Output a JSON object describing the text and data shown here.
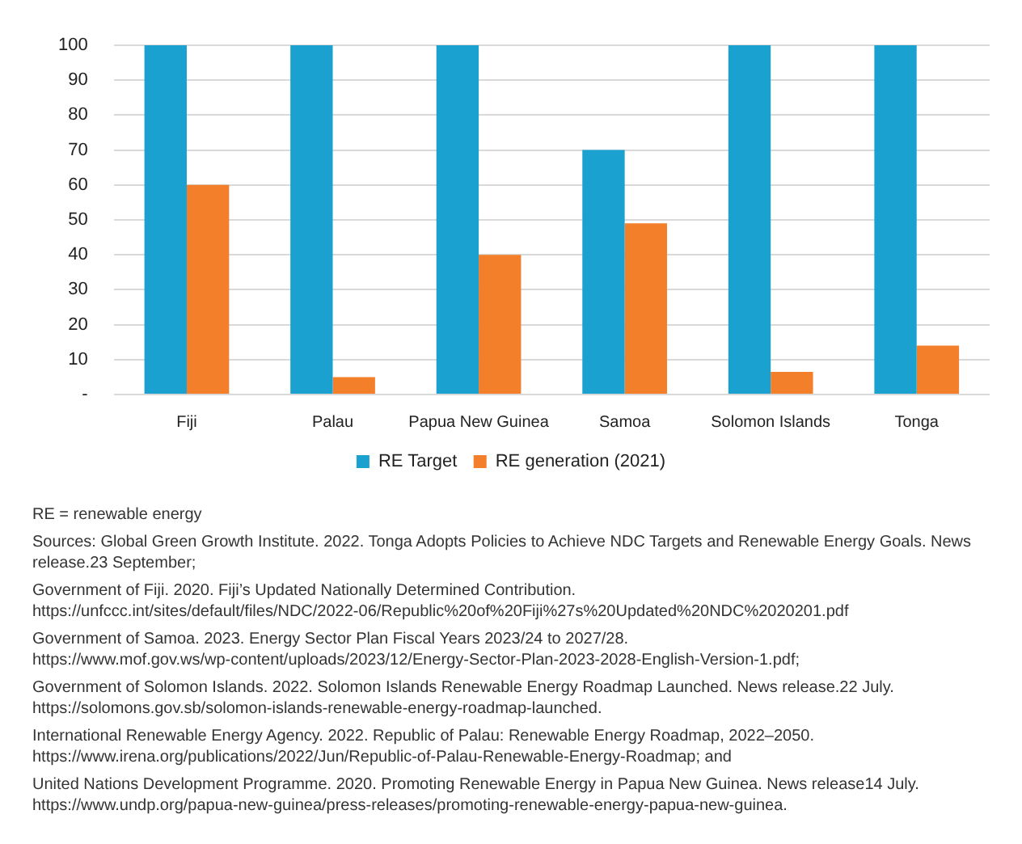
{
  "chart_data": {
    "type": "bar",
    "categories": [
      "Fiji",
      "Palau",
      "Papua New Guinea",
      "Samoa",
      "Solomon Islands",
      "Tonga"
    ],
    "series": [
      {
        "name": "RE Target",
        "color": "#1ba1cf",
        "values": [
          100,
          100,
          100,
          70,
          100,
          100
        ]
      },
      {
        "name": "RE generation (2021)",
        "color": "#f47f2a",
        "values": [
          60,
          5,
          40,
          49,
          6.5,
          14
        ]
      }
    ],
    "ylim": [
      0,
      100
    ],
    "yticks": [
      {
        "value": 0,
        "label": "-"
      },
      10,
      20,
      30,
      40,
      50,
      60,
      70,
      80,
      90,
      100
    ],
    "grid": "y",
    "legend": "bottom",
    "annotations": [
      "RE = renewable energy",
      "Sources: Global Green Growth Institute. 2022. Tonga Adopts Policies to Achieve NDC Targets and Renewable Energy Goals. News release.23 September;",
      "Government of Fiji. 2020. Fiji’s Updated Nationally Determined Contribution.\nhttps://unfccc.int/sites/default/files/NDC/2022-06/Republic%20of%20Fiji%27s%20Updated%20NDC%2020201.pdf",
      "Government of Samoa. 2023. Energy Sector Plan Fiscal Years 2023/24 to 2027/28.\nhttps://www.mof.gov.ws/wp-content/uploads/2023/12/Energy-Sector-Plan-2023-2028-English-Version-1.pdf;",
      "Government of Solomon Islands. 2022. Solomon Islands Renewable Energy Roadmap Launched. News release.22 July.\nhttps://solomons.gov.sb/solomon-islands-renewable-energy-roadmap-launched.",
      "International Renewable Energy Agency. 2022. Republic of Palau: Renewable Energy Roadmap, 2022–2050.\nhttps://www.irena.org/publications/2022/Jun/Republic-of-Palau-Renewable-Energy-Roadmap; and",
      "United Nations Development Programme. 2020. Promoting Renewable Energy in Papua New Guinea. News release14 July.\nhttps://www.undp.org/papua-new-guinea/press-releases/promoting-renewable-energy-papua-new-guinea."
    ]
  }
}
